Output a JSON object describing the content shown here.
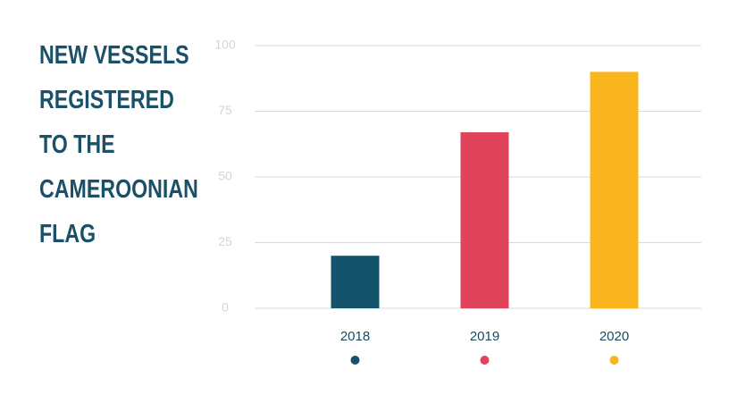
{
  "chart_data": {
    "type": "bar",
    "title": "NEW VESSELS REGISTERED TO THE CAMEROONIAN FLAG",
    "categories": [
      "2018",
      "2019",
      "2020"
    ],
    "values": [
      20,
      67,
      90
    ],
    "colors": [
      "#13536b",
      "#e0435c",
      "#f9b51c"
    ],
    "ylim": [
      0,
      100
    ],
    "yticks": [
      0,
      25,
      50,
      75,
      100
    ],
    "grid": true
  }
}
